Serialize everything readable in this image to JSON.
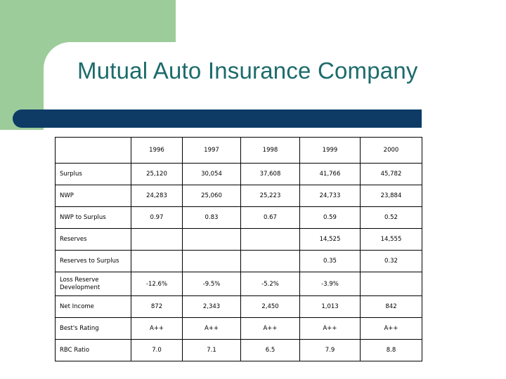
{
  "title": "Mutual Auto Insurance Company",
  "colors": {
    "green_block": "#9ccc9a",
    "title_text": "#1d6b6b",
    "title_bar": "#0d3b66"
  },
  "table": {
    "years": [
      "1996",
      "1997",
      "1998",
      "1999",
      "2000"
    ],
    "rows": [
      {
        "label": "Surplus",
        "values": [
          "25,120",
          "30,054",
          "37,608",
          "41,766",
          "45,782"
        ]
      },
      {
        "label": "NWP",
        "values": [
          "24,283",
          "25,060",
          "25,223",
          "24,733",
          "23,884"
        ]
      },
      {
        "label": "NWP to Surplus",
        "values": [
          "0.97",
          "0.83",
          "0.67",
          "0.59",
          "0.52"
        ]
      },
      {
        "label": "Reserves",
        "values": [
          "",
          "",
          "",
          "14,525",
          "14,555"
        ]
      },
      {
        "label": "Reserves to Surplus",
        "values": [
          "",
          "",
          "",
          "0.35",
          "0.32"
        ]
      },
      {
        "label_line1": "Loss Reserve",
        "label_line2": "Development",
        "values": [
          "-12.6%",
          "-9.5%",
          "-5.2%",
          "-3.9%",
          ""
        ]
      },
      {
        "label": "Net Income",
        "values": [
          "872",
          "2,343",
          "2,450",
          "1,013",
          "842"
        ]
      },
      {
        "label": "Best's Rating",
        "values": [
          "A++",
          "A++",
          "A++",
          "A++",
          "A++"
        ]
      },
      {
        "label": "RBC Ratio",
        "values": [
          "7.0",
          "7.1",
          "6.5",
          "7.9",
          "8.8"
        ]
      }
    ]
  }
}
